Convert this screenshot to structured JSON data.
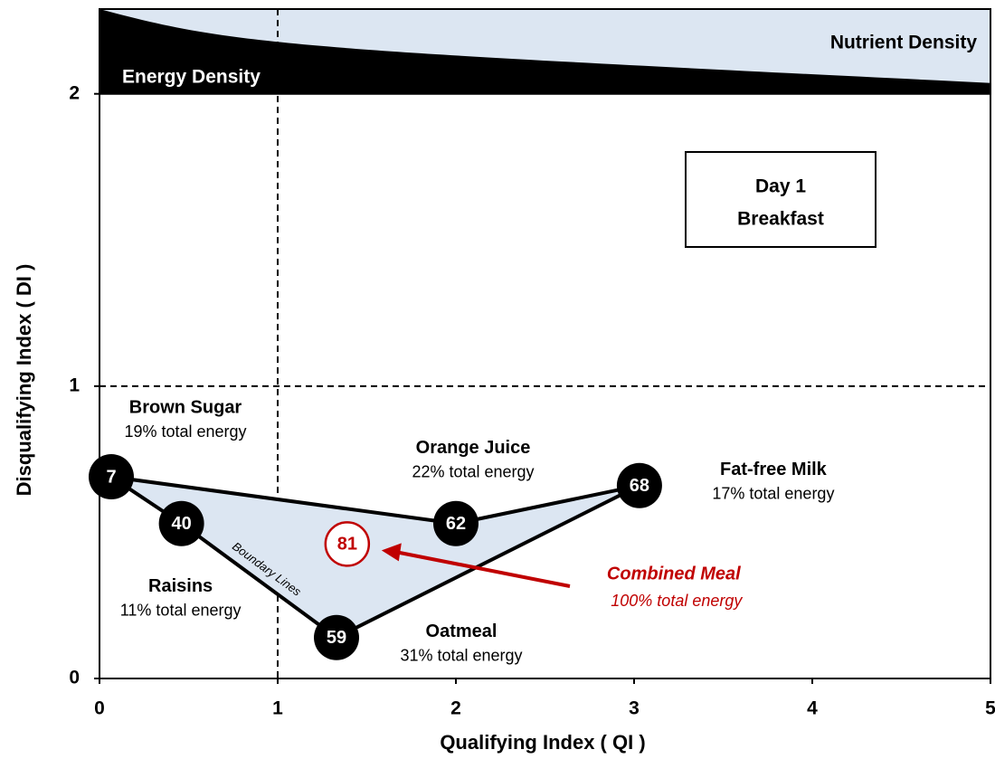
{
  "chart_data": {
    "type": "scatter",
    "xlabel": "Qualifying  Index  ( QI )",
    "ylabel": "Disqualifying  Index  ( DI )",
    "xlim": [
      0,
      5
    ],
    "ylim": [
      0,
      2.29
    ],
    "xticks": [
      0,
      1,
      2,
      3,
      4,
      5
    ],
    "yticks": [
      0,
      1,
      2
    ],
    "reference_lines": [
      {
        "axis": "x",
        "value": 1
      },
      {
        "axis": "y",
        "value": 1
      }
    ],
    "band_labels": {
      "energy": "Energy Density",
      "nutrient": "Nutrient Density"
    },
    "box_text": [
      "Day 1",
      "Breakfast"
    ],
    "boundary_label": "Boundary Lines",
    "color": "#000000",
    "polygon_color": "#dce6f2",
    "points": [
      {
        "label": "7",
        "name": "Brown Sugar",
        "note": "19% total energy",
        "x": 0.066,
        "y": 0.69
      },
      {
        "label": "40",
        "name": "Raisins",
        "note": "11% total energy",
        "x": 0.46,
        "y": 0.53
      },
      {
        "label": "62",
        "name": "Orange Juice",
        "note": "22% total energy",
        "x": 2.0,
        "y": 0.53
      },
      {
        "label": "68",
        "name": "Fat-free Milk",
        "note": "17% total energy",
        "x": 3.03,
        "y": 0.66
      },
      {
        "label": "59",
        "name": "Oatmeal",
        "note": "31% total energy",
        "x": 1.33,
        "y": 0.14
      }
    ],
    "combined": {
      "label": "81",
      "name": "Combined Meal",
      "note": "100% total energy",
      "x": 1.39,
      "y": 0.46,
      "color": "#c00000"
    }
  }
}
